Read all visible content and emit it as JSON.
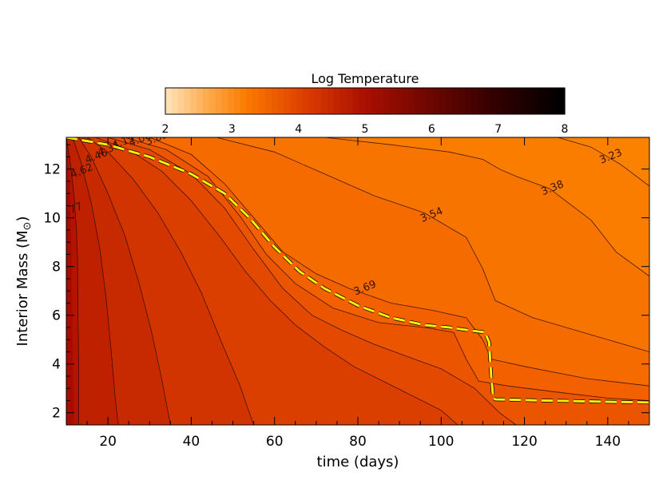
{
  "chart_data": {
    "type": "heatmap",
    "colorbar": {
      "title": "Log Temperature",
      "range": [
        2,
        8
      ],
      "ticks": [
        "2",
        "3",
        "4",
        "5",
        "6",
        "7",
        "8"
      ]
    },
    "xlabel": "time (days)",
    "ylabel_main": "Interior Mass (M",
    "ylabel_close": ")",
    "xlim": [
      10,
      150
    ],
    "ylim": [
      1.5,
      13.3
    ],
    "x_ticks": [
      "20",
      "40",
      "60",
      "80",
      "100",
      "120",
      "140"
    ],
    "y_ticks": [
      "2",
      "4",
      "6",
      "8",
      "10",
      "12"
    ],
    "contours": [
      {
        "value": 4.77,
        "label": "4.77",
        "label_at": [
          11.5,
          10.2
        ],
        "color": "#b31300",
        "points": [
          [
            10,
            13.3
          ],
          [
            11.0,
            12.2
          ],
          [
            11.8,
            11.0
          ],
          [
            12.4,
            9.6
          ],
          [
            12.7,
            8.3
          ],
          [
            12.8,
            6.0
          ],
          [
            13.0,
            4.0
          ],
          [
            13.0,
            1.5
          ]
        ]
      },
      {
        "value": 4.62,
        "label": "4.62",
        "label_at": [
          14.0,
          11.8
        ],
        "color": "#bf2000",
        "points": [
          [
            11.5,
            13.3
          ],
          [
            13.5,
            12.3
          ],
          [
            16.0,
            10.6
          ],
          [
            18.0,
            8.8
          ],
          [
            19.5,
            6.8
          ],
          [
            20.8,
            4.5
          ],
          [
            21.8,
            2.5
          ],
          [
            22.5,
            1.5
          ]
        ]
      },
      {
        "value": 4.46,
        "label": "4.46",
        "label_at": [
          17.5,
          12.4
        ],
        "color": "#c82a00",
        "points": [
          [
            13.0,
            13.3
          ],
          [
            16.0,
            12.5
          ],
          [
            20.0,
            11.0
          ],
          [
            24.0,
            9.3
          ],
          [
            27.5,
            7.3
          ],
          [
            30.5,
            5.3
          ],
          [
            33.0,
            3.3
          ],
          [
            35.0,
            1.5
          ]
        ]
      },
      {
        "value": 4.31,
        "label": "4.31",
        "label_at": [
          20.5,
          12.7
        ],
        "color": "#d23400",
        "points": [
          [
            15.0,
            13.3
          ],
          [
            20.0,
            12.7
          ],
          [
            26.0,
            11.6
          ],
          [
            32.0,
            10.2
          ],
          [
            37.5,
            8.6
          ],
          [
            42.5,
            6.9
          ],
          [
            47.0,
            5.0
          ],
          [
            51.5,
            3.2
          ],
          [
            55.0,
            1.5
          ]
        ]
      },
      {
        "value": 4.15,
        "label": "4.15",
        "label_at": [
          24.0,
          13.0
        ],
        "color": "#db3f00",
        "points": [
          [
            17.0,
            13.3
          ],
          [
            25.0,
            12.8
          ],
          [
            33.0,
            11.9
          ],
          [
            40.0,
            10.7
          ],
          [
            47.0,
            9.2
          ],
          [
            53.0,
            7.8
          ],
          [
            59.0,
            6.6
          ],
          [
            65.0,
            5.6
          ],
          [
            72.0,
            4.7
          ],
          [
            79.0,
            3.9
          ],
          [
            86.0,
            3.3
          ],
          [
            93.0,
            2.7
          ],
          [
            100.0,
            2.1
          ],
          [
            104.0,
            1.5
          ]
        ]
      },
      {
        "value": 4.0,
        "label": "4.00",
        "label_at": [
          28.0,
          13.1
        ],
        "color": "#e44900",
        "points": [
          [
            20.0,
            13.3
          ],
          [
            30.0,
            12.8
          ],
          [
            40.0,
            11.8
          ],
          [
            48.0,
            10.4
          ],
          [
            55.0,
            8.7
          ],
          [
            62.0,
            7.1
          ],
          [
            69.0,
            6.0
          ],
          [
            76.0,
            5.4
          ],
          [
            84.0,
            4.8
          ],
          [
            92.0,
            4.3
          ],
          [
            100.0,
            3.8
          ],
          [
            108.0,
            3.0
          ],
          [
            114.0,
            2.0
          ],
          [
            118.0,
            1.5
          ]
        ]
      },
      {
        "value": 3.85,
        "label": "3.85",
        "label_at": [
          32.0,
          13.15
        ],
        "color": "#ec5500",
        "points": [
          [
            24.0,
            13.3
          ],
          [
            34.0,
            12.8
          ],
          [
            44.0,
            11.7
          ],
          [
            52.0,
            10.0
          ],
          [
            58.0,
            8.5
          ],
          [
            65.0,
            7.3
          ],
          [
            74.0,
            6.3
          ],
          [
            85.0,
            5.7
          ],
          [
            96.0,
            5.5
          ],
          [
            103.0,
            5.3
          ],
          [
            106.0,
            4.2
          ],
          [
            109.0,
            3.3
          ],
          [
            116.0,
            3.1
          ],
          [
            130.0,
            2.8
          ],
          [
            140.0,
            2.6
          ],
          [
            150.0,
            2.5
          ]
        ]
      },
      {
        "value": 3.69,
        "label": "3.69",
        "label_at": [
          82.0,
          7.0
        ],
        "color": "#f26000",
        "points": [
          [
            30.0,
            13.3
          ],
          [
            40.0,
            12.6
          ],
          [
            48.0,
            11.4
          ],
          [
            56.0,
            9.8
          ],
          [
            62.0,
            8.6
          ],
          [
            70.0,
            7.7
          ],
          [
            78.0,
            7.1
          ],
          [
            88.0,
            6.5
          ],
          [
            98.0,
            6.2
          ],
          [
            106.0,
            5.9
          ],
          [
            110.0,
            5.0
          ],
          [
            112.0,
            4.2
          ],
          [
            120.0,
            3.9
          ],
          [
            135.0,
            3.4
          ],
          [
            150.0,
            3.1
          ]
        ]
      },
      {
        "value": 3.54,
        "label": "3.54",
        "label_at": [
          98.0,
          10.0
        ],
        "color": "#f66b00",
        "points": [
          [
            46.0,
            13.3
          ],
          [
            60.0,
            12.7
          ],
          [
            72.0,
            11.8
          ],
          [
            84.0,
            10.9
          ],
          [
            96.0,
            10.2
          ],
          [
            106.0,
            9.2
          ],
          [
            110.0,
            7.9
          ],
          [
            113.0,
            6.6
          ],
          [
            122.0,
            5.9
          ],
          [
            134.0,
            5.3
          ],
          [
            150.0,
            4.5
          ]
        ]
      },
      {
        "value": 3.38,
        "label": "3.38",
        "label_at": [
          127.0,
          11.1
        ],
        "color": "#f87400",
        "points": [
          [
            72.0,
            13.3
          ],
          [
            88.0,
            13.0
          ],
          [
            102.0,
            12.7
          ],
          [
            110.0,
            12.4
          ],
          [
            114.0,
            12.0
          ],
          [
            118.0,
            11.7
          ],
          [
            126.0,
            11.2
          ],
          [
            136.0,
            9.9
          ],
          [
            142.0,
            8.6
          ],
          [
            150.0,
            7.6
          ]
        ]
      },
      {
        "value": 3.23,
        "label": "3.23",
        "label_at": [
          141.0,
          12.4
        ],
        "color": "#fa7d00",
        "points": [
          [
            128.0,
            13.3
          ],
          [
            136.0,
            12.9
          ],
          [
            143.0,
            12.2
          ],
          [
            150.0,
            11.3
          ]
        ]
      }
    ],
    "yellow_line": [
      [
        10,
        13.3
      ],
      [
        20,
        13.0
      ],
      [
        30,
        12.5
      ],
      [
        40,
        11.8
      ],
      [
        48,
        11.0
      ],
      [
        54,
        10.0
      ],
      [
        60,
        8.8
      ],
      [
        66,
        7.8
      ],
      [
        72,
        7.1
      ],
      [
        80,
        6.4
      ],
      [
        88,
        5.9
      ],
      [
        96,
        5.6
      ],
      [
        102,
        5.5
      ],
      [
        106,
        5.4
      ],
      [
        110.5,
        5.3
      ],
      [
        111.5,
        4.9
      ],
      [
        112,
        3.5
      ],
      [
        112.5,
        2.6
      ],
      [
        113,
        2.55
      ],
      [
        125,
        2.5
      ],
      [
        140,
        2.45
      ],
      [
        150,
        2.42
      ]
    ],
    "colors": {
      "background_fill": "#fa8200",
      "yellow": "#ffef00"
    }
  }
}
